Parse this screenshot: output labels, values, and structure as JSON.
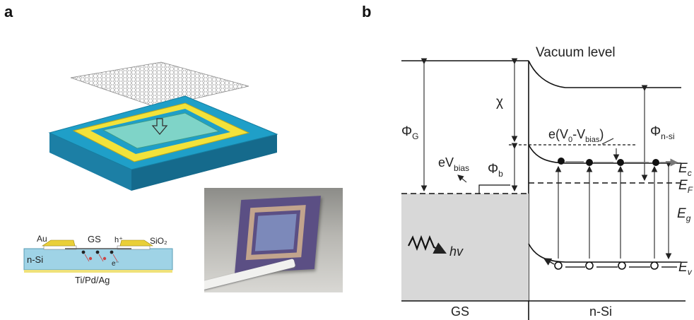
{
  "panel_a": {
    "label": "a",
    "cross_section": {
      "au": "Au",
      "gs": "GS",
      "hplus": "h⁺",
      "sio2": "SiO₂",
      "nsi": "n-Si",
      "electron": "e⁻",
      "contact": "Ti/Pd/Ag"
    }
  },
  "panel_b": {
    "label": "b",
    "vacuum_level": "Vacuum level",
    "chi": "χ",
    "phi_g": "Φ",
    "phi_g_sub": "G",
    "phi_nsi": "Φ",
    "phi_nsi_sub": "n-si",
    "phi_b": "Φ",
    "phi_b_sub": "b",
    "ev_bias": "eV",
    "ev_bias_sub": "bias",
    "delta_v": "e(V",
    "delta_v_sub0": "0",
    "delta_v_mid": "-V",
    "delta_v_sub1": "bias",
    "delta_v_end": ")",
    "e_c": "E",
    "e_c_sub": "c",
    "e_f": "E",
    "e_f_sub": "F",
    "e_g": "E",
    "e_g_sub": "g",
    "e_v": "E",
    "e_v_sub": "v",
    "hv": "hv",
    "gs": "GS",
    "nsi": "n-Si"
  },
  "colors": {
    "substrate_blue": "#1f9fc8",
    "gold": "#f2e23a",
    "teal": "#7fd4c8",
    "gs_fill": "#d8d8d8"
  }
}
